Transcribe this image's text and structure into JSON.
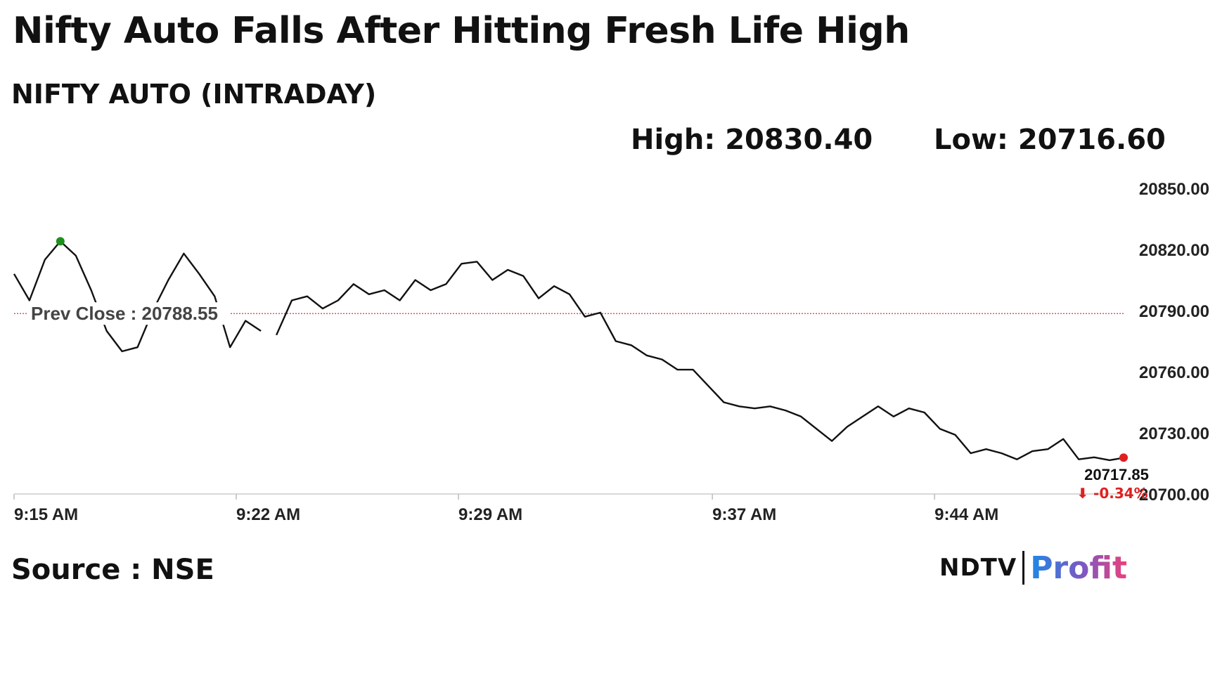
{
  "headline": "Nifty Auto Falls After Hitting Fresh Life High",
  "subtitle": "NIFTY AUTO (INTRADAY)",
  "stats": {
    "high": "High: 20830.40",
    "low": "Low: 20716.60"
  },
  "source": "Source : NSE",
  "brand": {
    "left": "NDTV",
    "right": "Profit"
  },
  "chart_data": {
    "type": "line",
    "title": "NIFTY AUTO (INTRADAY)",
    "xlabel": "",
    "ylabel": "",
    "ylim": [
      20700,
      20850
    ],
    "y_ticks": [
      20850,
      20820,
      20790,
      20760,
      20730,
      20700
    ],
    "y_tick_labels": [
      "20850.00",
      "20820.00",
      "20790.00",
      "20760.00",
      "20730.00",
      "20700.00"
    ],
    "x_ticks": [
      "9:15 AM",
      "9:22 AM",
      "9:29 AM",
      "9:37 AM",
      "9:44 AM"
    ],
    "x_range": [
      "9:15 AM",
      "9:50 AM"
    ],
    "grid": false,
    "prev_close": {
      "value": 20788.55,
      "label": "Prev Close : 20788.55"
    },
    "last": {
      "value": 20717.85,
      "label": "20717.85",
      "change": "⬇ -0.34%"
    },
    "high_point": {
      "time": "9:16 AM",
      "value": 20830.4
    },
    "colors": {
      "line": "#111111",
      "prev_close": "#cc2222",
      "high_marker": "#1f8f1f",
      "last_marker": "#e02020",
      "change": "#e02020"
    },
    "series": [
      {
        "values": [
          [
            "9:15 AM",
            20808
          ],
          [
            "9:15 AM",
            20795
          ],
          [
            "9:16 AM",
            20815
          ],
          [
            "9:16 AM",
            20824
          ],
          [
            "9:16 AM",
            20817
          ],
          [
            "9:17 AM",
            20800
          ],
          [
            "9:17 AM",
            20780
          ],
          [
            "9:18 AM",
            20770
          ],
          [
            "9:18 AM",
            20772
          ],
          [
            "9:18 AM",
            20790
          ],
          [
            "9:19 AM",
            20805
          ],
          [
            "9:19 AM",
            20818
          ],
          [
            "9:20 AM",
            20808
          ],
          [
            "9:20 AM",
            20797
          ],
          [
            "9:20 AM",
            20772
          ],
          [
            "9:21 AM",
            20785
          ],
          [
            "9:22 AM",
            20780
          ],
          [
            "9:22 AM",
            20778
          ],
          [
            "9:23 AM",
            20795
          ],
          [
            "9:23 AM",
            20797
          ],
          [
            "9:24 AM",
            20791
          ],
          [
            "9:24 AM",
            20795
          ],
          [
            "9:25 AM",
            20803
          ],
          [
            "9:25 AM",
            20798
          ],
          [
            "9:26 AM",
            20800
          ],
          [
            "9:26 AM",
            20795
          ],
          [
            "9:26 AM",
            20805
          ],
          [
            "9:27 AM",
            20800
          ],
          [
            "9:27 AM",
            20803
          ],
          [
            "9:28 AM",
            20813
          ],
          [
            "9:28 AM",
            20814
          ],
          [
            "9:29 AM",
            20805
          ],
          [
            "9:29 AM",
            20810
          ],
          [
            "9:30 AM",
            20807
          ],
          [
            "9:30 AM",
            20796
          ],
          [
            "9:31 AM",
            20802
          ],
          [
            "9:31 AM",
            20798
          ],
          [
            "9:32 AM",
            20787
          ],
          [
            "9:32 AM",
            20789
          ],
          [
            "9:33 AM",
            20775
          ],
          [
            "9:33 AM",
            20773
          ],
          [
            "9:34 AM",
            20768
          ],
          [
            "9:35 AM",
            20766
          ],
          [
            "9:35 AM",
            20761
          ],
          [
            "9:36 AM",
            20761
          ],
          [
            "9:36 AM",
            20753
          ],
          [
            "9:37 AM",
            20745
          ],
          [
            "9:37 AM",
            20743
          ],
          [
            "9:38 AM",
            20742
          ],
          [
            "9:38 AM",
            20743
          ],
          [
            "9:39 AM",
            20741
          ],
          [
            "9:40 AM",
            20738
          ],
          [
            "9:40 AM",
            20732
          ],
          [
            "9:41 AM",
            20726
          ],
          [
            "9:41 AM",
            20733
          ],
          [
            "9:42 AM",
            20738
          ],
          [
            "9:42 AM",
            20743
          ],
          [
            "9:43 AM",
            20738
          ],
          [
            "9:43 AM",
            20742
          ],
          [
            "9:44 AM",
            20740
          ],
          [
            "9:44 AM",
            20732
          ],
          [
            "9:45 AM",
            20729
          ],
          [
            "9:45 AM",
            20720
          ],
          [
            "9:46 AM",
            20722
          ],
          [
            "9:46 AM",
            20720
          ],
          [
            "9:47 AM",
            20717
          ],
          [
            "9:47 AM",
            20721
          ],
          [
            "9:48 AM",
            20722
          ],
          [
            "9:48 AM",
            20727
          ],
          [
            "9:49 AM",
            20717
          ],
          [
            "9:49 AM",
            20718
          ],
          [
            "9:50 AM",
            20716.6
          ],
          [
            "9:50 AM",
            20717.85
          ]
        ]
      }
    ]
  }
}
